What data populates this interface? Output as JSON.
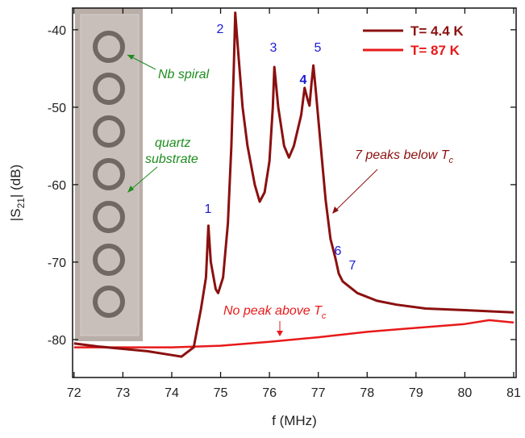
{
  "chart_data": {
    "type": "line",
    "xlabel": "f (MHz)",
    "ylabel": [
      "|S",
      "21",
      "| (dB)"
    ],
    "xlim": [
      71.97,
      81.05
    ],
    "ylim": [
      -84.9,
      -37.2
    ],
    "xticks": [
      72,
      73,
      74,
      75,
      76,
      77,
      78,
      79,
      80,
      81
    ],
    "yticks": [
      -80,
      -70,
      -60,
      -50,
      -40
    ],
    "legend": "top-right",
    "series": [
      {
        "name": "T= 4.4 K",
        "color": "#8b1010",
        "x": [
          72,
          72.5,
          73,
          73.5,
          74,
          74.2,
          74.45,
          74.6,
          74.7,
          74.75,
          74.8,
          74.9,
          74.95,
          75.05,
          75.15,
          75.22,
          75.27,
          75.3,
          75.35,
          75.45,
          75.55,
          75.7,
          75.8,
          75.9,
          76.0,
          76.07,
          76.1,
          76.18,
          76.3,
          76.4,
          76.5,
          76.65,
          76.72,
          76.78,
          76.82,
          76.86,
          76.9,
          76.95,
          77.05,
          77.15,
          77.25,
          77.35,
          77.42,
          77.5,
          77.6,
          77.8,
          78.2,
          78.6,
          79.2,
          80,
          81
        ],
        "values": [
          -80.5,
          -80.9,
          -81.2,
          -81.5,
          -82,
          -82.2,
          -81,
          -76,
          -72,
          -65.3,
          -70,
          -73.5,
          -74,
          -72,
          -65,
          -55,
          -45,
          -37.8,
          -42,
          -50,
          -55,
          -60,
          -62.2,
          -61,
          -57,
          -50,
          -44.8,
          -50,
          -55,
          -56.5,
          -55,
          -51,
          -47.5,
          -49,
          -49.8,
          -47,
          -44.6,
          -48,
          -55,
          -62,
          -67,
          -69.5,
          -71.5,
          -72.5,
          -73,
          -74,
          -75,
          -75.5,
          -76,
          -76.2,
          -76.5
        ]
      },
      {
        "name": "T= 87 K",
        "color": "#e8191a",
        "x": [
          72,
          73,
          74,
          75,
          76,
          77,
          78,
          79,
          80,
          80.5,
          81
        ],
        "values": [
          -81,
          -81,
          -81,
          -80.8,
          -80.3,
          -79.7,
          -79,
          -78.5,
          -78,
          -77.5,
          -77.8
        ]
      }
    ],
    "peak_labels": [
      "1",
      "2",
      "3",
      "4",
      "5",
      "6",
      "7"
    ],
    "annotations": {
      "nb_spiral": "Nb spiral",
      "quartz": [
        "quartz",
        "substrate"
      ],
      "peaks_below": [
        "7 peaks below T",
        "c"
      ],
      "no_peak": [
        "No peak above T",
        "c"
      ]
    }
  }
}
